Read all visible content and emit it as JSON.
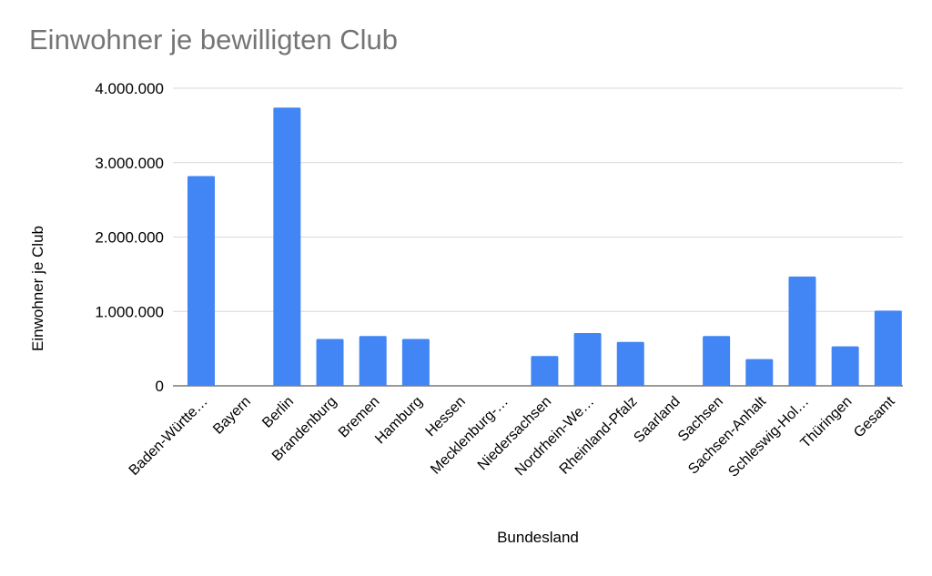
{
  "chart_data": {
    "type": "bar",
    "title": "Einwohner je bewilligten Club",
    "xlabel": "Bundesland",
    "ylabel": "Einwohner je Club",
    "categories": [
      "Baden-Württe…",
      "Bayern",
      "Berlin",
      "Brandenburg",
      "Bremen",
      "Hamburg",
      "Hessen",
      "Mecklenburg-…",
      "Niedersachsen",
      "Nordrhein-We…",
      "Rheinland-Pfalz",
      "Saarland",
      "Sachsen",
      "Sachsen-Anhalt",
      "Schleswig-Hol…",
      "Thüringen",
      "Gesamt"
    ],
    "values": [
      2820000,
      0,
      3740000,
      630000,
      670000,
      630000,
      0,
      0,
      400000,
      710000,
      590000,
      0,
      670000,
      360000,
      1470000,
      530000,
      1010000
    ],
    "ylim": [
      0,
      4000000
    ],
    "yticks": [
      "0",
      "1.000.000",
      "2.000.000",
      "3.000.000",
      "4.000.000"
    ],
    "ytick_values": [
      0,
      1000000,
      2000000,
      3000000,
      4000000
    ],
    "grid": true,
    "legend": "none",
    "colors": {
      "bar": "#4285f4",
      "grid": "#d9d9d9",
      "title": "#757575",
      "text": "#000000"
    }
  }
}
